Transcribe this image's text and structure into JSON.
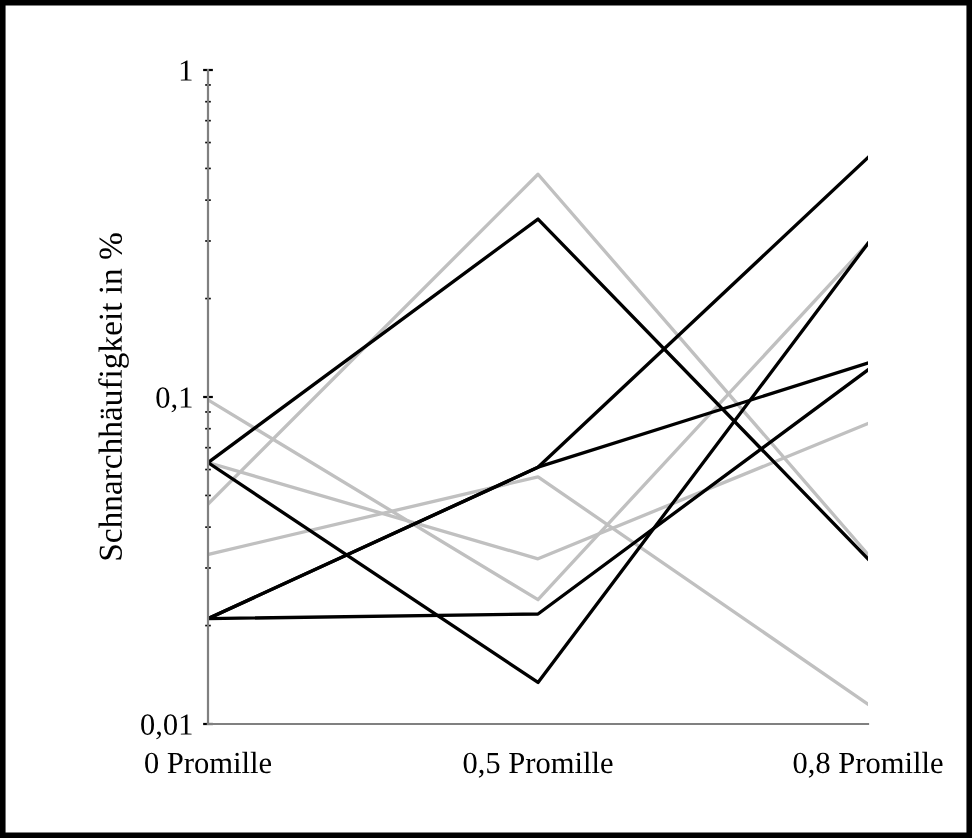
{
  "chart_data": {
    "type": "line",
    "ylabel": "Schnarchhäufigkeit in %",
    "categories": [
      "0 Promille",
      "0,5 Promille",
      "0,8 Promille"
    ],
    "series": [
      {
        "color": "#c0c0c0",
        "values": [
          0.098,
          0.024,
          0.295
        ]
      },
      {
        "color": "#c0c0c0",
        "values": [
          0.063,
          0.032,
          0.083
        ]
      },
      {
        "color": "#c0c0c0",
        "values": [
          0.047,
          0.48,
          0.033
        ]
      },
      {
        "color": "#c0c0c0",
        "values": [
          0.033,
          0.057,
          0.0115
        ]
      },
      {
        "color": "#000000",
        "values": [
          0.063,
          0.35,
          0.032
        ]
      },
      {
        "color": "#000000",
        "values": [
          0.063,
          0.0134,
          0.295
        ]
      },
      {
        "color": "#000000",
        "values": [
          0.021,
          0.0217,
          0.121
        ]
      },
      {
        "color": "#000000",
        "values": [
          0.021,
          0.061,
          0.127
        ]
      },
      {
        "color": "#000000",
        "values": [
          0.021,
          0.061,
          0.54
        ]
      }
    ],
    "log": "y",
    "ylim": [
      0.01,
      1
    ],
    "yticks": [
      {
        "value": 0.01,
        "label": "0,01"
      },
      {
        "value": 0.1,
        "label": "0,1"
      },
      1
    ],
    "grid": false,
    "legend": false,
    "marker": "none",
    "line_style": "solid"
  }
}
